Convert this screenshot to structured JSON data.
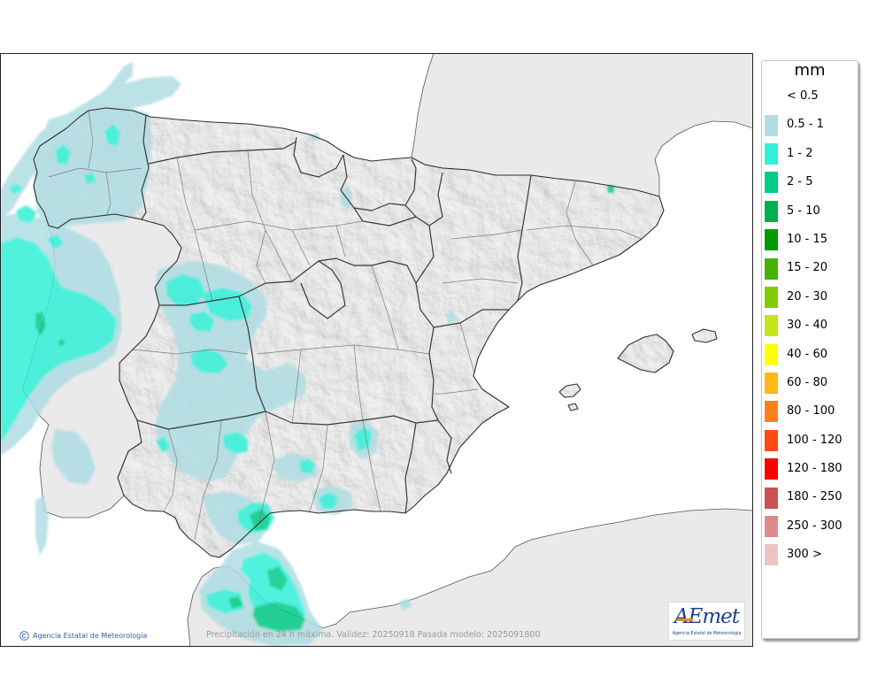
{
  "map": {
    "credit": "Agencia Estatal de Meteorología",
    "credit_icon": "copyright-icon",
    "caption": "Precipitación en 24 h máxima. Validez: 20250918 Pasada modelo: 2025091800"
  },
  "legend": {
    "title": "mm",
    "items": [
      {
        "label": "< 0.5",
        "color": null
      },
      {
        "label": "0.5 - 1",
        "color": "#afdde3"
      },
      {
        "label": "1 - 2",
        "color": "#33f0d9"
      },
      {
        "label": "2 - 5",
        "color": "#00cc88"
      },
      {
        "label": "5 - 10",
        "color": "#00b04c"
      },
      {
        "label": "10 - 15",
        "color": "#009900"
      },
      {
        "label": "15 - 20",
        "color": "#44b300"
      },
      {
        "label": "20 - 30",
        "color": "#7fcc00"
      },
      {
        "label": "30 - 40",
        "color": "#c2e619"
      },
      {
        "label": "40 - 60",
        "color": "#ffff00"
      },
      {
        "label": "60 - 80",
        "color": "#ffb81a"
      },
      {
        "label": "80 - 100",
        "color": "#ff801a"
      },
      {
        "label": "100 - 120",
        "color": "#ff4a14"
      },
      {
        "label": "120 - 180",
        "color": "#ff0000"
      },
      {
        "label": "180 - 250",
        "color": "#cc5252"
      },
      {
        "label": "250 - 300",
        "color": "#dd8a8a"
      },
      {
        "label": "300 >",
        "color": "#edc4c4"
      }
    ]
  },
  "logo": {
    "wordmark": "AEmet",
    "subtitle": "Agencia Estatal de Meteorología"
  }
}
